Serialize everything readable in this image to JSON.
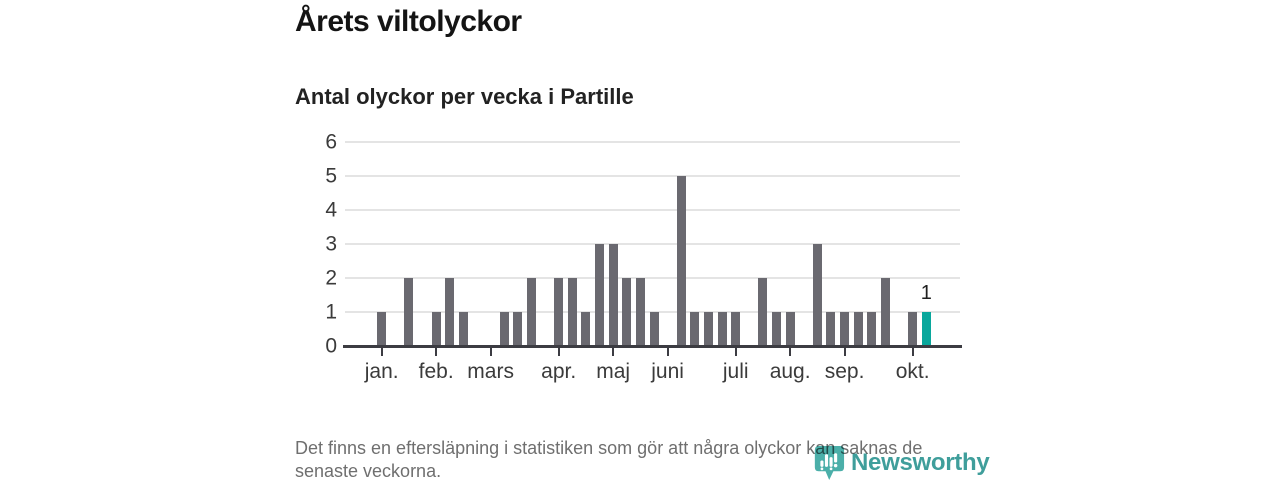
{
  "title": "Årets viltolyckor",
  "subtitle": "Antal olyckor per vecka i Partille",
  "footer": {
    "line1": "Det finns en eftersläpning i statistiken som gör att några olyckor kan saknas de",
    "line2": "senaste veckorna."
  },
  "logo": {
    "name": "Newsworthy",
    "icon": "newsworthy-pin-barchart-icon",
    "text_color": "#3f9e9b",
    "icon_color": "#4bafa9"
  },
  "colors": {
    "bar": "#6a6970",
    "highlight": "#09a79c",
    "grid": "#e4e4e4",
    "axis": "#3c3c42",
    "tick_label": "#3b3b3b",
    "annotation": "#202020",
    "title_text": "#141414",
    "subtitle_text": "#222222",
    "footer_text": "#6f6f6f",
    "background": "#ffffff"
  },
  "chart_data": {
    "type": "bar",
    "title": "Årets viltolyckor",
    "subtitle": "Antal olyckor per vecka i Partille",
    "xlabel": "",
    "ylabel": "",
    "ylim": [
      0,
      6
    ],
    "y_ticks": [
      0,
      1,
      2,
      3,
      4,
      5,
      6
    ],
    "grid": "horizontal",
    "x_unit": "week of year, January–October",
    "values_per_week": [
      1,
      0,
      2,
      0,
      1,
      2,
      1,
      0,
      0,
      1,
      1,
      2,
      0,
      2,
      2,
      1,
      3,
      3,
      2,
      2,
      1,
      0,
      5,
      1,
      1,
      1,
      1,
      0,
      2,
      1,
      1,
      0,
      3,
      1,
      1,
      1,
      1,
      2,
      0,
      1,
      1,
      0
    ],
    "month_ticks": [
      {
        "label": "jan.",
        "week": 1
      },
      {
        "label": "feb.",
        "week": 5
      },
      {
        "label": "mars",
        "week": 9
      },
      {
        "label": "apr.",
        "week": 14
      },
      {
        "label": "maj",
        "week": 18
      },
      {
        "label": "juni",
        "week": 22
      },
      {
        "label": "juli",
        "week": 27
      },
      {
        "label": "aug.",
        "week": 31
      },
      {
        "label": "sep.",
        "week": 35
      },
      {
        "label": "okt.",
        "week": 40
      }
    ],
    "highlight_week": 41,
    "annotation": {
      "week": 41,
      "text": "1"
    },
    "legend": null
  }
}
